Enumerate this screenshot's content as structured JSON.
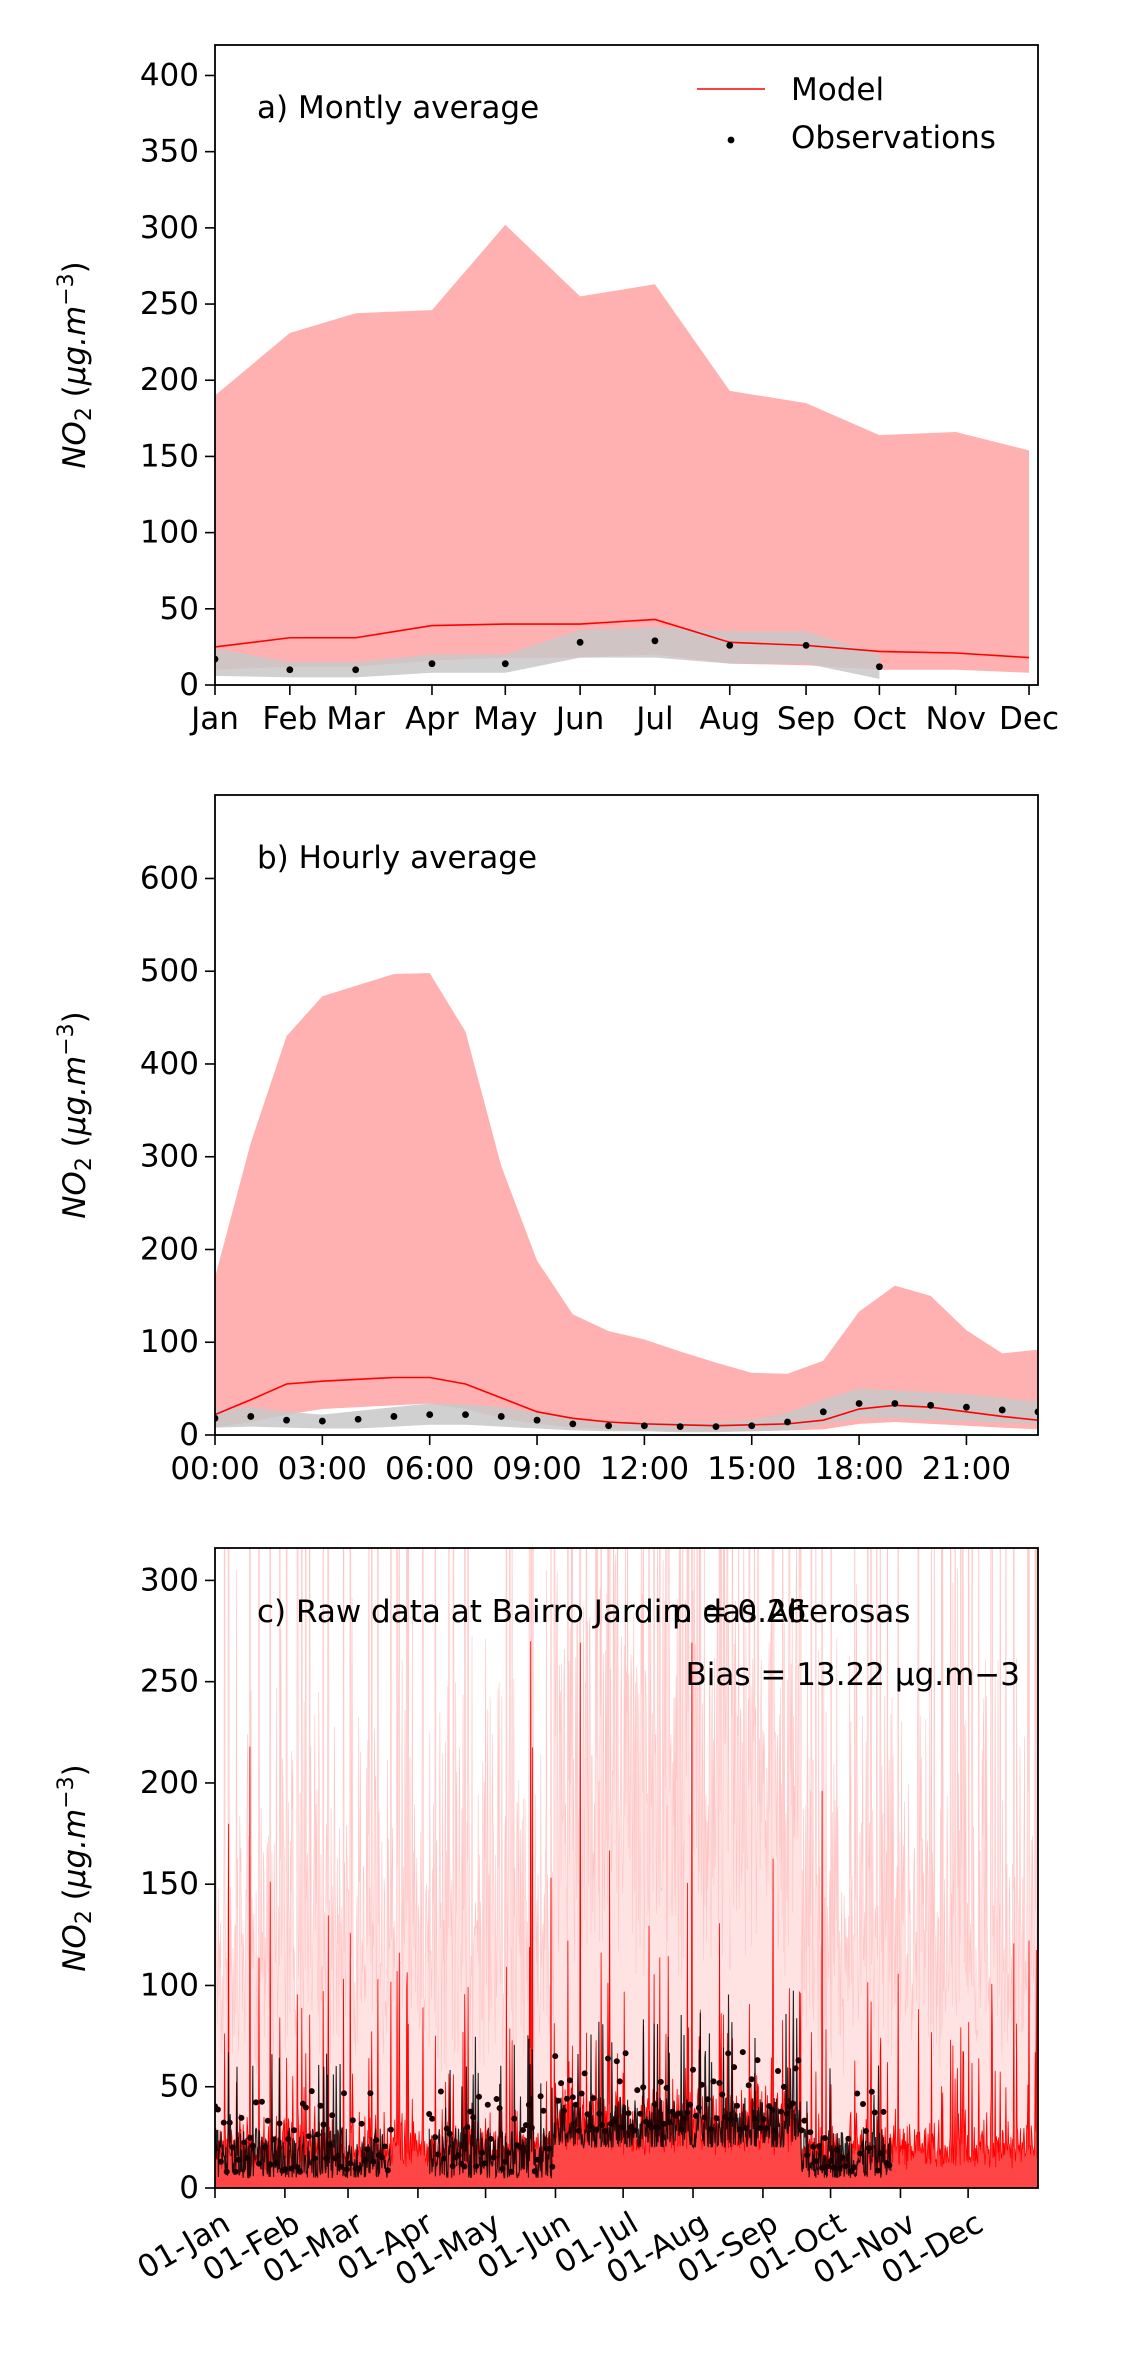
{
  "chart_data": [
    {
      "type": "line",
      "panel_label": "a) Montly average",
      "ylabel": "NO2 (μg.m−3)",
      "xlabel": "",
      "ylim": [
        0,
        420
      ],
      "yticks": [
        0,
        50,
        100,
        150,
        200,
        250,
        300,
        350,
        400
      ],
      "categories": [
        "Jan",
        "Feb",
        "Mar",
        "Apr",
        "May",
        "Jun",
        "Jul",
        "Aug",
        "Sep",
        "Oct",
        "Nov",
        "Dec"
      ],
      "x": [
        1,
        2,
        2.88,
        3.9,
        4.88,
        5.88,
        6.88,
        7.88,
        8.9,
        9.88,
        10.9,
        11.88
      ],
      "legend": {
        "placement": "top-right",
        "entries": [
          "Model",
          "Observations"
        ]
      },
      "series": [
        {
          "name": "Model",
          "kind": "line",
          "color": "#ff0000",
          "values": [
            25,
            31,
            31,
            39,
            40,
            40,
            43,
            28,
            26,
            22,
            21,
            18
          ]
        },
        {
          "kind": "band",
          "color": "#ffb0b0",
          "lower": [
            10,
            12,
            12,
            16,
            18,
            18,
            20,
            14,
            13,
            10,
            10,
            8
          ],
          "upper": [
            190,
            231,
            244,
            246,
            302,
            255,
            263,
            193,
            185,
            164,
            166,
            154
          ]
        },
        {
          "name": "Observations",
          "kind": "points",
          "color": "#000000",
          "x": [
            1,
            2,
            2.88,
            3.9,
            4.88,
            5.88,
            6.88,
            7.88,
            8.9,
            9.88
          ],
          "values": [
            17,
            10,
            10,
            14,
            14,
            28,
            29,
            26,
            26,
            12
          ]
        },
        {
          "kind": "band",
          "color": "#c8c8c8",
          "x": [
            1,
            2,
            2.88,
            3.9,
            4.88,
            5.88,
            6.88,
            7.88,
            8.9,
            9.88
          ],
          "lower": [
            6,
            5,
            5,
            8,
            8,
            18,
            18,
            14,
            14,
            4
          ],
          "upper": [
            24,
            15,
            15,
            20,
            20,
            36,
            38,
            35,
            35,
            20
          ]
        }
      ]
    },
    {
      "type": "line",
      "panel_label": "b) Hourly average",
      "ylabel": "NO2 (μg.m−3)",
      "xlabel": "",
      "ylim": [
        0,
        690
      ],
      "yticks": [
        0,
        100,
        200,
        300,
        400,
        500,
        600
      ],
      "xlim": [
        0,
        23
      ],
      "xtick_values": [
        0,
        3,
        6,
        9,
        12,
        15,
        18,
        21
      ],
      "xtick_labels": [
        "00:00",
        "03:00",
        "06:00",
        "09:00",
        "12:00",
        "15:00",
        "18:00",
        "21:00"
      ],
      "x": [
        0,
        1,
        2,
        3,
        4,
        5,
        6,
        7,
        8,
        9,
        10,
        11,
        12,
        13,
        14,
        15,
        16,
        17,
        18,
        19,
        20,
        21,
        22,
        23
      ],
      "series": [
        {
          "name": "Model",
          "kind": "line",
          "color": "#ff0000",
          "values": [
            22,
            38,
            55,
            58,
            60,
            62,
            62,
            55,
            40,
            25,
            18,
            14,
            12,
            11,
            10,
            11,
            12,
            16,
            28,
            32,
            30,
            25,
            20,
            16
          ]
        },
        {
          "kind": "band",
          "color": "#ffb0b0",
          "lower": [
            8,
            14,
            22,
            28,
            30,
            32,
            34,
            28,
            18,
            12,
            8,
            6,
            5,
            4,
            4,
            4,
            5,
            6,
            12,
            14,
            12,
            10,
            8,
            6
          ],
          "upper": [
            170,
            315,
            430,
            473,
            485,
            497,
            498,
            435,
            290,
            188,
            130,
            112,
            103,
            90,
            78,
            67,
            66,
            80,
            133,
            161,
            150,
            113,
            88,
            92
          ]
        },
        {
          "name": "Observations",
          "kind": "points",
          "color": "#000000",
          "values": [
            18,
            20,
            16,
            15,
            17,
            20,
            22,
            22,
            20,
            16,
            12,
            10,
            10,
            9,
            9,
            10,
            14,
            25,
            34,
            34,
            32,
            30,
            27,
            25
          ]
        },
        {
          "kind": "band",
          "color": "#c8c8c8",
          "lower": [
            8,
            9,
            8,
            7,
            7,
            9,
            11,
            11,
            9,
            7,
            5,
            4,
            4,
            3,
            3,
            4,
            5,
            12,
            18,
            18,
            16,
            15,
            13,
            12
          ],
          "upper": [
            28,
            30,
            25,
            22,
            26,
            30,
            34,
            33,
            30,
            24,
            18,
            15,
            14,
            14,
            14,
            16,
            24,
            38,
            50,
            48,
            46,
            44,
            40,
            36
          ]
        }
      ]
    },
    {
      "type": "line",
      "panel_label": "c) Raw data at Bairro Jardim das Alterosas",
      "annotations": [
        "p = 0.26",
        "Bias = 13.22 μg.m−3"
      ],
      "ylabel": "NO2 (μg.m−3)",
      "xlabel": "",
      "ylim": [
        0,
        316
      ],
      "yticks": [
        0,
        50,
        100,
        150,
        200,
        250,
        300
      ],
      "xlim": [
        0,
        365
      ],
      "xtick_values": [
        0,
        31,
        59,
        90,
        120,
        151,
        181,
        212,
        243,
        273,
        304,
        334
      ],
      "xtick_labels": [
        "01-Jan",
        "01-Feb",
        "01-Mar",
        "01-Apr",
        "01-May",
        "01-Jun",
        "01-Jul",
        "01-Aug",
        "01-Sep",
        "01-Oct",
        "01-Nov",
        "01-Dec"
      ],
      "series": [
        {
          "name": "Model",
          "kind": "line",
          "color": "#ff0000",
          "summary": "hourly series, typically 10-100, spikes to >300"
        },
        {
          "kind": "band",
          "color": "#ffd6d6",
          "summary": "model upper envelope, frequently exceeding 316"
        },
        {
          "name": "Observations",
          "kind": "points",
          "color": "#000000",
          "periods": [
            [
              0,
              78
            ],
            [
              95,
              300
            ]
          ],
          "summary": "hourly observations, typically 0-60, occasional values up to ~85"
        }
      ]
    }
  ]
}
